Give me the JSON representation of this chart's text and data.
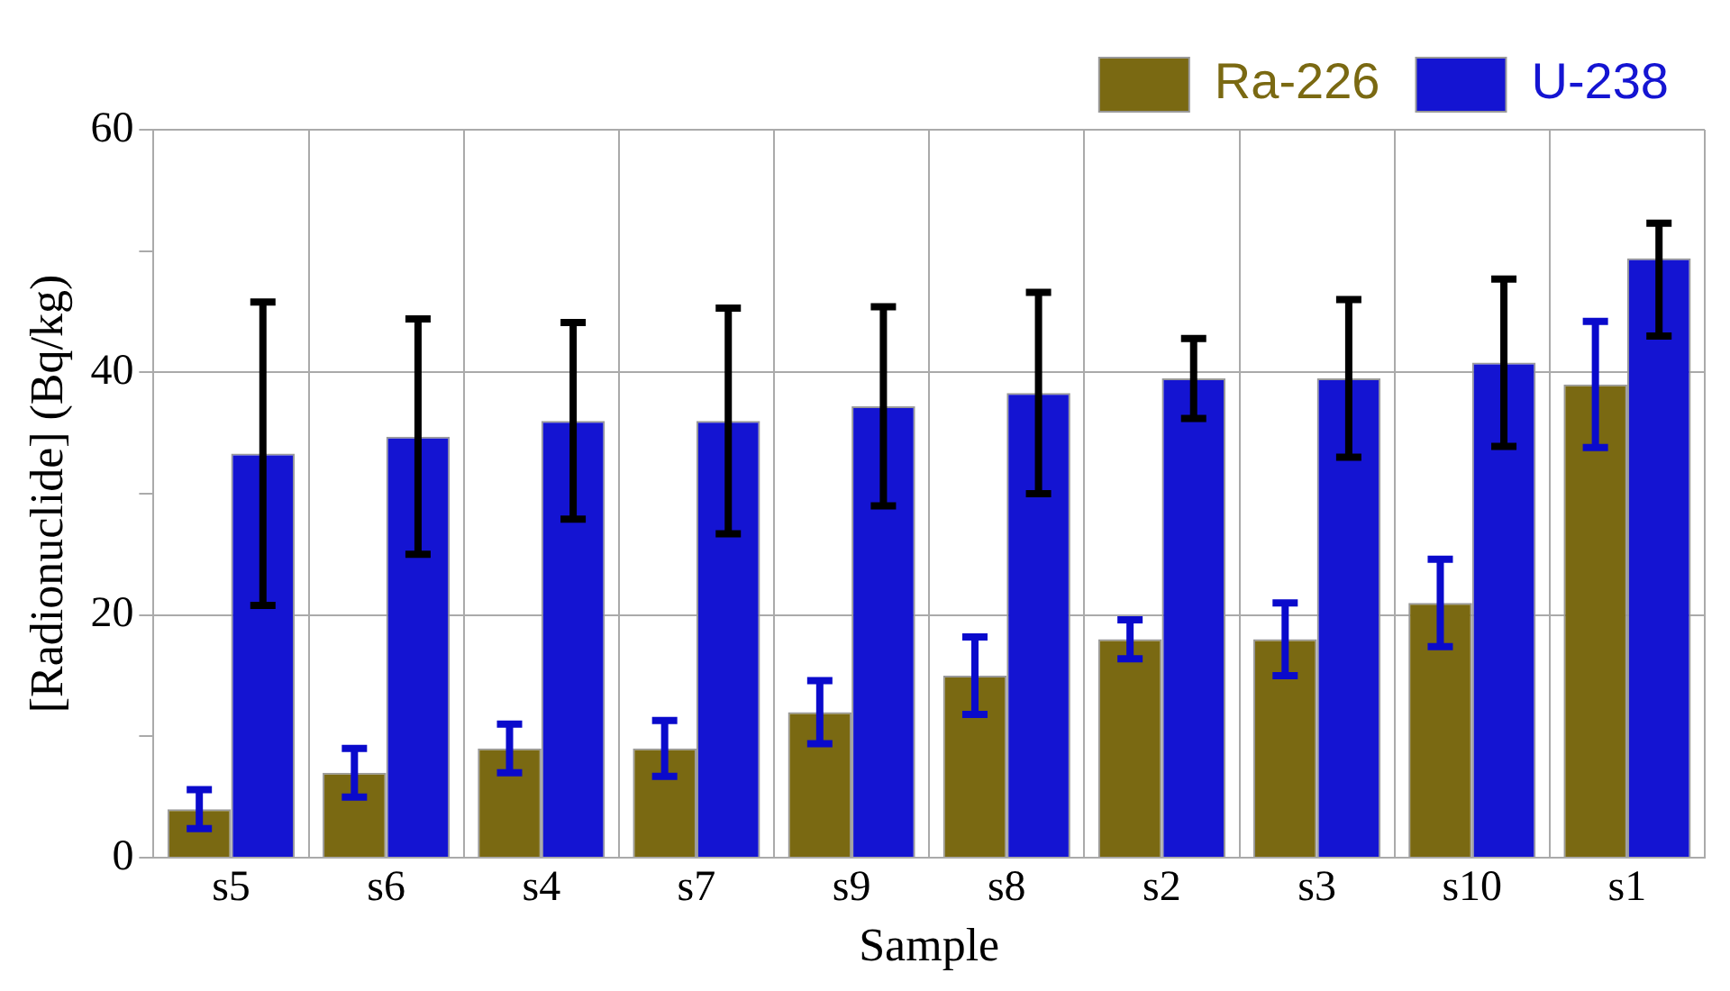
{
  "chart_data": {
    "type": "bar",
    "xlabel": "Sample",
    "ylabel": "[Radionuclide] (Bq/kg)",
    "categories": [
      "s5",
      "s6",
      "s4",
      "s7",
      "s9",
      "s8",
      "s2",
      "s3",
      "s10",
      "s1"
    ],
    "series": [
      {
        "name": "Ra-226",
        "color": "#7a6912",
        "values": [
          4,
          7,
          9,
          9,
          12,
          15,
          18,
          18,
          21,
          39
        ],
        "errors": [
          1.6,
          2,
          2,
          2.3,
          2.6,
          3.2,
          1.6,
          3,
          3.6,
          5.2
        ]
      },
      {
        "name": "U-238",
        "color": "#1414d2",
        "values": [
          33.3,
          34.7,
          36,
          36,
          37.2,
          38.3,
          39.5,
          39.5,
          40.8,
          49.4
        ],
        "errors": [
          12.5,
          9.7,
          8.1,
          9.3,
          8.2,
          8.3,
          3.3,
          6.5,
          6.9,
          [
            43,
            52.3
          ]
        ]
      }
    ],
    "ylim": [
      0,
      60
    ],
    "yticks": [
      0,
      {
        "value": 10,
        "label": null
      },
      20,
      {
        "value": 30,
        "label": null
      },
      40,
      {
        "value": 50,
        "label": null
      },
      60
    ],
    "grid": true,
    "legend": "top right"
  }
}
